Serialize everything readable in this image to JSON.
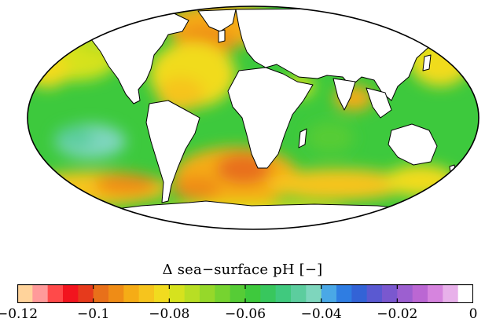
{
  "map": {
    "projection": "mollweide",
    "continent_fill": "#ffffff",
    "coast_color": "#000000",
    "ocean_background": "#3dc93d"
  },
  "colorbar": {
    "title": "Δ sea−surface pH [−]",
    "min": -0.12,
    "max": 0,
    "colors": [
      "#ffd39b",
      "#ff9a9a",
      "#ff4a4a",
      "#f2141e",
      "#e63a1c",
      "#e8701a",
      "#ef8c16",
      "#f5ac16",
      "#f6c41d",
      "#f1db1f",
      "#d6e21e",
      "#b8de24",
      "#96d82a",
      "#76d330",
      "#56cc36",
      "#3ec93d",
      "#38c75d",
      "#40c97e",
      "#5ccd9e",
      "#7ed6bd",
      "#4aa8e6",
      "#2f7de2",
      "#3363d6",
      "#5a59d1",
      "#7a58cf",
      "#9c5fd0",
      "#bb67d3",
      "#d684de",
      "#e8b1ea",
      "#ffffff"
    ],
    "tick_labels": [
      {
        "value": -0.12,
        "label": "−0.12"
      },
      {
        "value": -0.1,
        "label": "−0.1"
      },
      {
        "value": -0.08,
        "label": "−0.08"
      },
      {
        "value": -0.06,
        "label": "−0.06"
      },
      {
        "value": -0.04,
        "label": "−0.04"
      },
      {
        "value": -0.02,
        "label": "−0.02"
      },
      {
        "value": 0,
        "label": "0"
      }
    ]
  }
}
